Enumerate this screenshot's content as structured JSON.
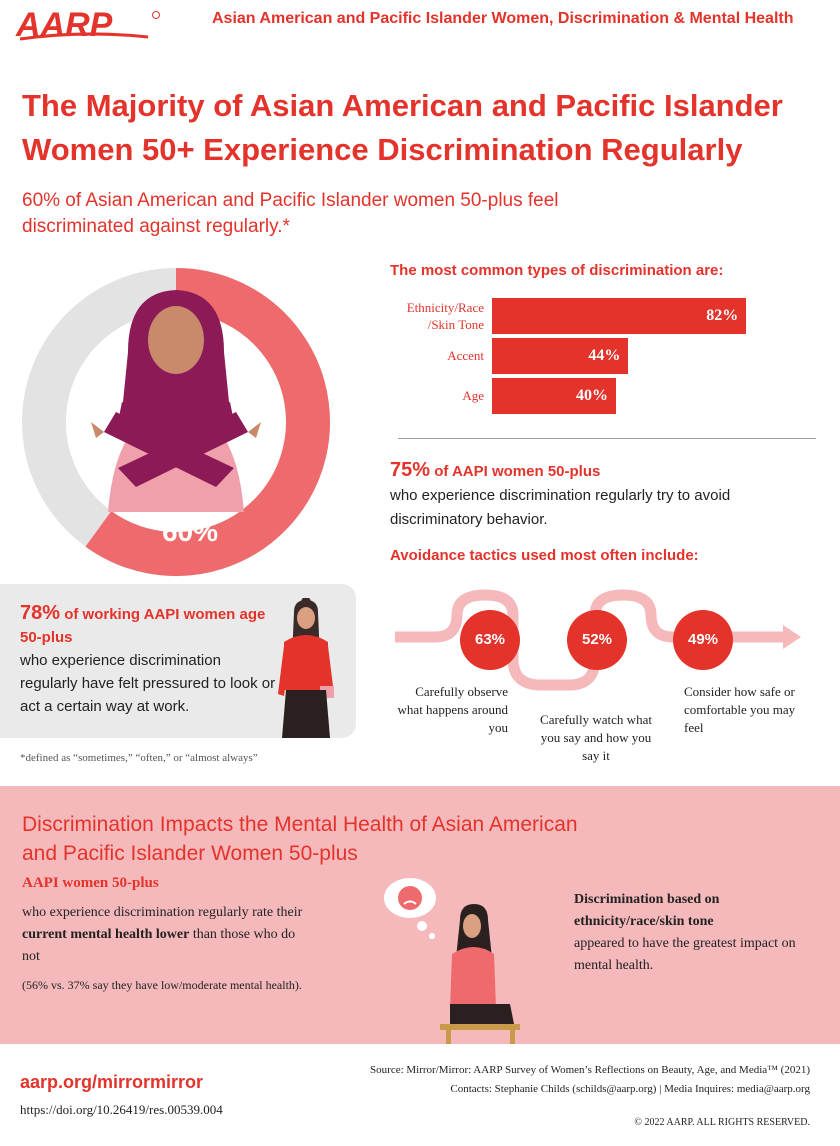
{
  "header": {
    "logo_text": "AARP",
    "title": "Asian American and Pacific Islander  Women, Discrimination & Mental Health"
  },
  "main_title": "The Majority of Asian American and Pacific Islander Women 50+ Experience Discrimination Regularly",
  "subtitle": "60% of Asian American and Pacific Islander women 50-plus feel discriminated against regularly.*",
  "donut": {
    "value": 60,
    "label": "60%"
  },
  "colors": {
    "brand_red": "#e3332b",
    "donut_light": "#ef6a6c",
    "donut_track": "#e4e3e3",
    "pink_bg": "#f5b9bc"
  },
  "chart_data": {
    "type": "bar",
    "title": "The most common types of discrimination are:",
    "categories": [
      "Ethnicity/Race /Skin Tone",
      "Accent",
      "Age"
    ],
    "values": [
      82,
      44,
      40
    ],
    "value_labels": [
      "82%",
      "44%",
      "40%"
    ],
    "orientation": "horizontal",
    "xlim": [
      0,
      100
    ]
  },
  "stat75": {
    "value": "75%",
    "highlight": "of AAPI women 50-plus",
    "text": "who experience discrimination regularly try to avoid discriminatory behavior."
  },
  "tactics": {
    "title": "Avoidance tactics used most often include:",
    "items": [
      {
        "value": "63%",
        "text": "Carefully observe what happens around you"
      },
      {
        "value": "52%",
        "text": "Carefully watch what you say and how you say it"
      },
      {
        "value": "49%",
        "text": "Consider how safe or comfortable you may feel"
      }
    ]
  },
  "stat78": {
    "value": "78%",
    "highlight": "of working AAPI women age 50-plus",
    "text": "who experience discrimination regularly have felt pressured to look or act a certain way at work."
  },
  "footnote": "*defined as “sometimes,” “often,” or “almost always”",
  "mental_health": {
    "title": "Discrimination Impacts the Mental Health of Asian American and Pacific Islander Women 50-plus",
    "subtitle": "AAPI women 50-plus",
    "desc_1": "who experience discrimination regularly rate their ",
    "desc_bold": "current mental health lower",
    "desc_2": " than those who do not",
    "paren": "(56% vs. 37% say they have low/moderate mental health).",
    "impact_bold": "Discrimination based on ethnicity/race/skin tone",
    "impact_text": "appeared to have the greatest impact on mental health."
  },
  "footer": {
    "url": "aarp.org/mirrormirror",
    "doi": "https://doi.org/10.26419/res.00539.004",
    "source": "Source: Mirror/Mirror: AARP Survey of Women’s Reflections on Beauty, Age, and Media™ (2021)",
    "contacts": "Contacts: Stephanie Childs (schilds@aarp.org) | Media Inquires: media@aarp.org",
    "copyright": "© 2022 AARP. ALL RIGHTS RESERVED."
  }
}
